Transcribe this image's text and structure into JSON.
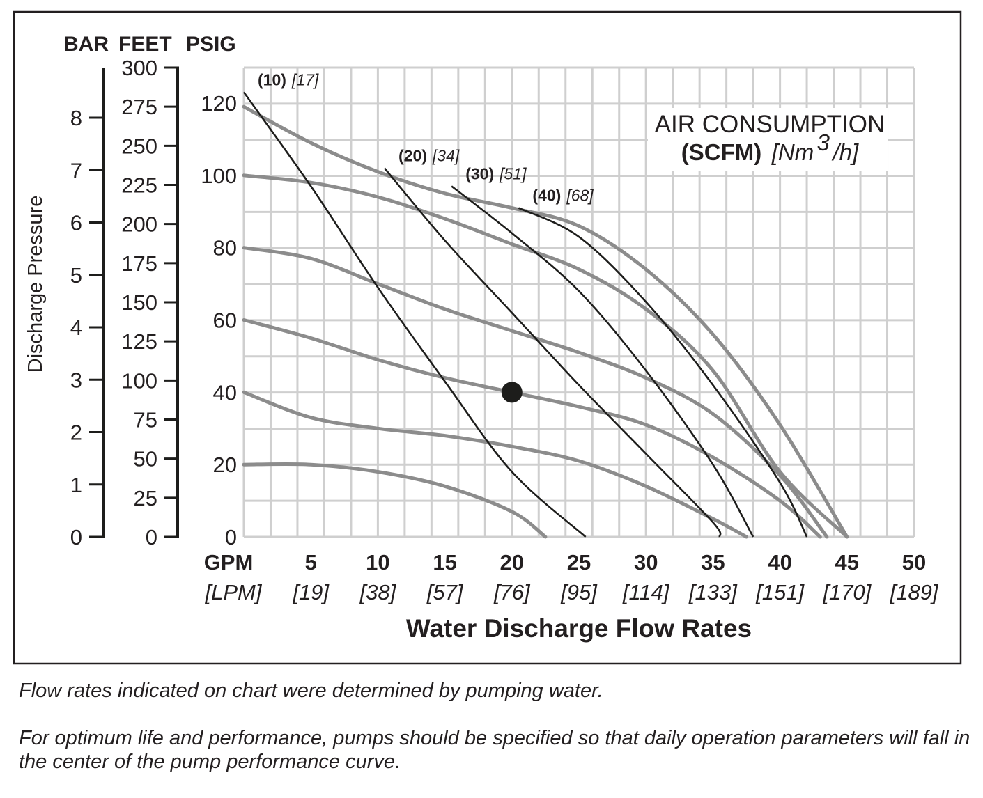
{
  "chart_data": {
    "type": "line",
    "title": "",
    "xlabel": "Water Discharge Flow Rates",
    "ylabel": "Discharge Pressure",
    "grid": true,
    "xlim": [
      0,
      50
    ],
    "ylim": [
      0,
      130
    ],
    "x_axis": {
      "unit_primary": "GPM",
      "unit_secondary": "[LPM]",
      "ticks": [
        {
          "value": 5,
          "label": "5",
          "sub": "[19]"
        },
        {
          "value": 10,
          "label": "10",
          "sub": "[38]"
        },
        {
          "value": 15,
          "label": "15",
          "sub": "[57]"
        },
        {
          "value": 20,
          "label": "20",
          "sub": "[76]"
        },
        {
          "value": 25,
          "label": "25",
          "sub": "[95]"
        },
        {
          "value": 30,
          "label": "30",
          "sub": "[114]"
        },
        {
          "value": 35,
          "label": "35",
          "sub": "[133]"
        },
        {
          "value": 40,
          "label": "40",
          "sub": "[151]"
        },
        {
          "value": 45,
          "label": "45",
          "sub": "[170]"
        },
        {
          "value": 50,
          "label": "50",
          "sub": "[189]"
        }
      ]
    },
    "y_axes": {
      "psig": {
        "header": "PSIG",
        "ticks": [
          "0",
          "20",
          "40",
          "60",
          "80",
          "100",
          "120"
        ],
        "values": [
          0,
          20,
          40,
          60,
          80,
          100,
          120
        ]
      },
      "feet": {
        "header": "FEET",
        "ticks": [
          "0",
          "25",
          "50",
          "75",
          "100",
          "125",
          "150",
          "175",
          "200",
          "225",
          "250",
          "275",
          "300"
        ],
        "values": [
          0,
          25,
          50,
          75,
          100,
          125,
          150,
          175,
          200,
          225,
          250,
          275,
          300
        ]
      },
      "bar": {
        "header": "BAR",
        "ticks": [
          "0",
          "1",
          "2",
          "3",
          "4",
          "5",
          "6",
          "7",
          "8"
        ],
        "values": [
          0,
          1,
          2,
          3,
          4,
          5,
          6,
          7,
          8
        ]
      }
    },
    "legend": {
      "title": "AIR CONSUMPTION",
      "unit_bold": "(SCFM)",
      "unit_italic_pre": "[Nm",
      "unit_sup": "3",
      "unit_italic_post": "/h]"
    },
    "air_consumption_curves": [
      {
        "scfm": "(10)",
        "nm3h": "[17]",
        "points": [
          [
            0,
            123
          ],
          [
            5,
            97
          ],
          [
            10,
            69
          ],
          [
            15,
            43
          ],
          [
            20,
            18
          ],
          [
            25.5,
            0
          ]
        ]
      },
      {
        "scfm": "(20)",
        "nm3h": "[34]",
        "points": [
          [
            10.5,
            102
          ],
          [
            15,
            82
          ],
          [
            20,
            62
          ],
          [
            25,
            42
          ],
          [
            30,
            23
          ],
          [
            35,
            4
          ],
          [
            35.5,
            0
          ]
        ]
      },
      {
        "scfm": "(30)",
        "nm3h": "[51]",
        "points": [
          [
            15.5,
            97
          ],
          [
            20,
            84
          ],
          [
            25,
            68
          ],
          [
            30,
            46
          ],
          [
            35,
            20
          ],
          [
            38,
            0
          ]
        ]
      },
      {
        "scfm": "(40)",
        "nm3h": "[68]",
        "points": [
          [
            20.5,
            91
          ],
          [
            25,
            83
          ],
          [
            30,
            65
          ],
          [
            35,
            42
          ],
          [
            40,
            15
          ],
          [
            42,
            0
          ]
        ]
      }
    ],
    "pressure_curves": [
      {
        "points": [
          [
            0,
            20
          ],
          [
            5,
            20
          ],
          [
            10,
            18
          ],
          [
            15,
            14
          ],
          [
            20,
            7
          ],
          [
            22.5,
            0
          ]
        ]
      },
      {
        "points": [
          [
            0,
            40
          ],
          [
            5,
            33
          ],
          [
            10,
            30
          ],
          [
            15,
            28
          ],
          [
            20,
            25
          ],
          [
            25,
            21
          ],
          [
            30,
            14
          ],
          [
            35,
            5
          ],
          [
            37.5,
            0
          ]
        ]
      },
      {
        "points": [
          [
            0,
            60
          ],
          [
            5,
            55
          ],
          [
            10,
            49
          ],
          [
            15,
            44
          ],
          [
            20,
            40
          ],
          [
            25,
            36
          ],
          [
            30,
            31
          ],
          [
            35,
            22
          ],
          [
            40,
            10
          ],
          [
            43,
            0
          ]
        ]
      },
      {
        "points": [
          [
            0,
            80
          ],
          [
            5,
            77
          ],
          [
            10,
            70
          ],
          [
            15,
            63
          ],
          [
            20,
            57
          ],
          [
            25,
            51
          ],
          [
            30,
            44
          ],
          [
            35,
            34
          ],
          [
            40,
            17
          ],
          [
            43.5,
            0
          ]
        ]
      },
      {
        "points": [
          [
            0,
            100
          ],
          [
            5,
            98
          ],
          [
            10,
            94
          ],
          [
            15,
            88
          ],
          [
            20,
            81
          ],
          [
            25,
            74
          ],
          [
            30,
            63
          ],
          [
            35,
            46
          ],
          [
            40,
            18
          ],
          [
            45,
            0
          ]
        ]
      },
      {
        "points": [
          [
            0,
            119
          ],
          [
            5,
            109
          ],
          [
            10,
            101
          ],
          [
            15,
            95
          ],
          [
            20,
            91
          ],
          [
            25,
            86
          ],
          [
            30,
            74
          ],
          [
            35,
            56
          ],
          [
            40,
            31
          ],
          [
            45,
            0
          ]
        ]
      }
    ],
    "operating_point": {
      "x": 20,
      "y": 40
    }
  },
  "notes": [
    "Flow rates indicated on chart were determined by pumping water.",
    "For optimum life and performance, pumps should be specified so that daily operation parameters will fall in the center of the pump performance curve."
  ]
}
